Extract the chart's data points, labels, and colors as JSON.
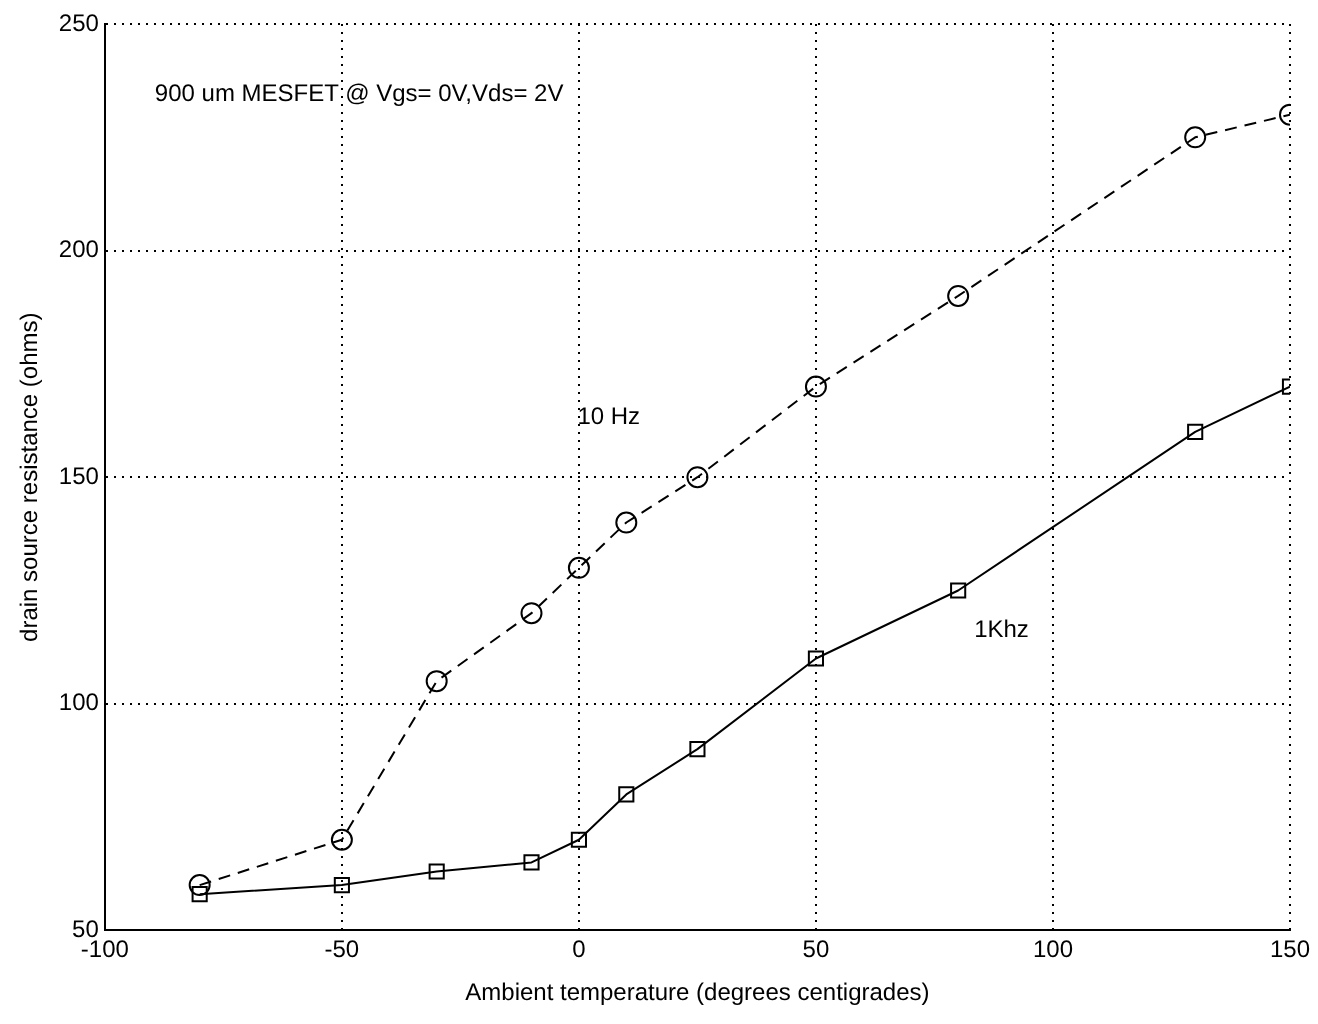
{
  "chart_data": {
    "type": "line",
    "xlabel": "Ambient temperature (degrees centigrades)",
    "ylabel": "drain source resistance (ohms)",
    "annotations": [
      "900 um MESFET @ Vgs= 0V,Vds= 2V"
    ],
    "xlim": [
      -100,
      150
    ],
    "xticks": [
      -100,
      -50,
      0,
      50,
      100,
      150
    ],
    "ylim": [
      50,
      250
    ],
    "yticks": [
      50,
      100,
      150,
      200,
      250
    ],
    "grid": true,
    "legend": false,
    "series": [
      {
        "name": "10 Hz",
        "color": "#000000",
        "marker": "circle",
        "line_style": "dashed",
        "x": [
          -80,
          -50,
          -30,
          -10,
          0,
          10,
          25,
          50,
          80,
          130,
          150
        ],
        "values": [
          60,
          70,
          105,
          120,
          130,
          140,
          150,
          170,
          190,
          225,
          230
        ]
      },
      {
        "name": "1Khz",
        "color": "#000000",
        "marker": "square",
        "line_style": "solid",
        "x": [
          -80,
          -50,
          -30,
          -10,
          0,
          10,
          25,
          50,
          80,
          130,
          150
        ],
        "values": [
          58,
          60,
          63,
          65,
          70,
          80,
          90,
          110,
          125,
          160,
          170
        ]
      }
    ]
  }
}
